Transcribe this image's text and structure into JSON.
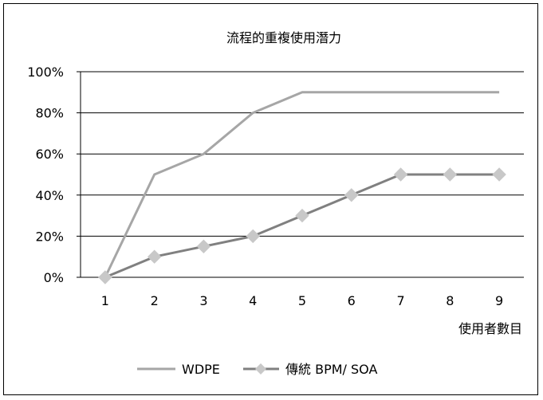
{
  "chart_data": {
    "type": "line",
    "title": "流程的重複使用潛力",
    "xlabel": "使用者數目",
    "ylabel": "",
    "categories": [
      "1",
      "2",
      "3",
      "4",
      "5",
      "6",
      "7",
      "8",
      "9"
    ],
    "ylim": [
      0,
      100
    ],
    "yticks": [
      "0%",
      "20%",
      "40%",
      "60%",
      "80%",
      "100%"
    ],
    "grid": true,
    "legend_position": "bottom",
    "series": [
      {
        "name": "WDPE",
        "values": [
          0,
          50,
          60,
          80,
          90,
          90,
          90,
          90,
          90
        ],
        "color": "#a6a6a6",
        "marker": "none"
      },
      {
        "name": "傳統 BPM/ SOA",
        "values": [
          0,
          10,
          15,
          20,
          30,
          40,
          50,
          50,
          50
        ],
        "color": "#808080",
        "marker": "diamond",
        "marker_color": "#c8c8c8"
      }
    ]
  }
}
